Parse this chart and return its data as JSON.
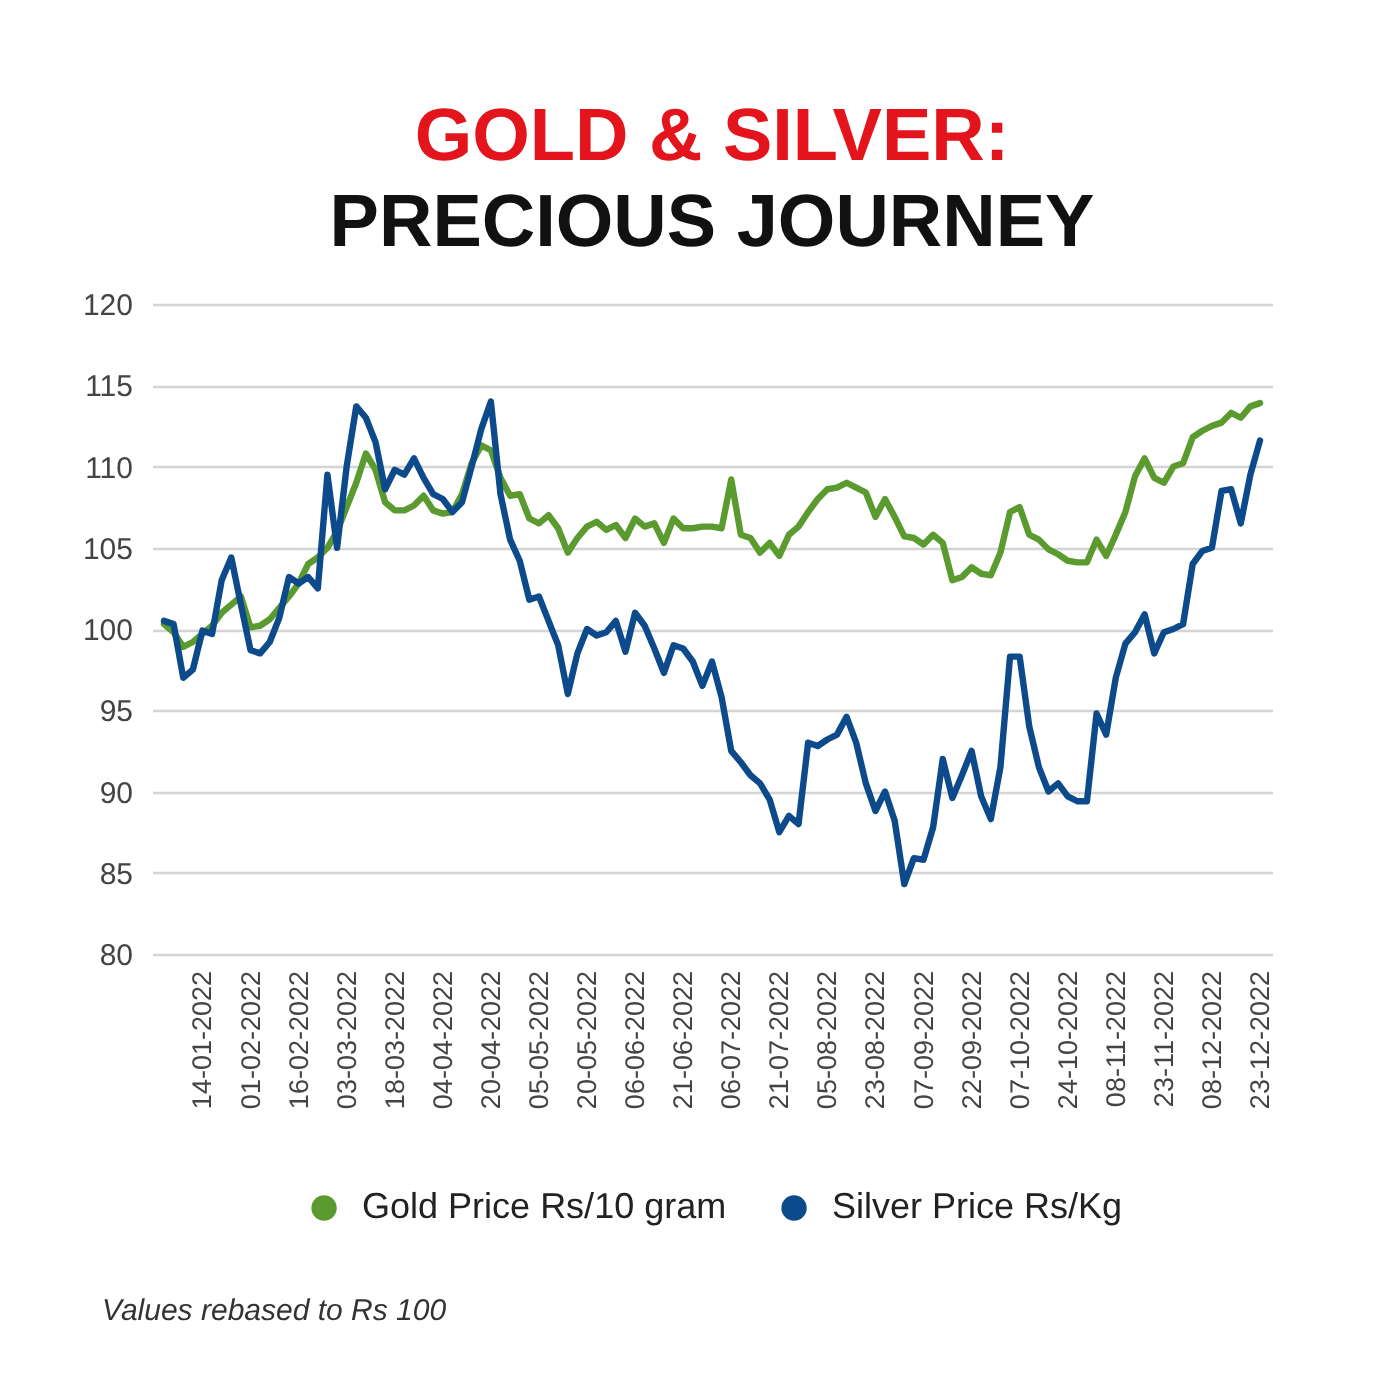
{
  "chart_data": {
    "type": "line",
    "title": "GOLD & SILVER:",
    "subtitle": "PRECIOUS JOURNEY",
    "categories": [
      null,
      null,
      null,
      null,
      "14-01-2022",
      null,
      null,
      null,
      null,
      "01-02-2022",
      null,
      null,
      null,
      null,
      "16-02-2022",
      null,
      null,
      null,
      null,
      "03-03-2022",
      null,
      null,
      null,
      null,
      "18-03-2022",
      null,
      null,
      null,
      null,
      "04-04-2022",
      null,
      null,
      null,
      null,
      "20-04-2022",
      null,
      null,
      null,
      null,
      "05-05-2022",
      null,
      null,
      null,
      null,
      "20-05-2022",
      null,
      null,
      null,
      null,
      "06-06-2022",
      null,
      null,
      null,
      null,
      "21-06-2022",
      null,
      null,
      null,
      null,
      "06-07-2022",
      null,
      null,
      null,
      null,
      "21-07-2022",
      null,
      null,
      null,
      null,
      "05-08-2022",
      null,
      null,
      null,
      null,
      "23-08-2022",
      null,
      null,
      null,
      null,
      "07-09-2022",
      null,
      null,
      null,
      null,
      "22-09-2022",
      null,
      null,
      null,
      null,
      "07-10-2022",
      null,
      null,
      null,
      null,
      "24-10-2022",
      null,
      null,
      null,
      null,
      "08-11-2022",
      null,
      null,
      null,
      null,
      "23-11-2022",
      null,
      null,
      null,
      null,
      "08-12-2022",
      null,
      null,
      null,
      null,
      "23-12-2022"
    ],
    "series": [
      {
        "name": "Gold Price Rs/10 gram",
        "color": "#5b9a2f",
        "values": [
          100.3,
          99.8,
          98.9,
          99.2,
          99.7,
          100.2,
          101,
          101.5,
          102,
          100.1,
          100.2,
          100.6,
          101.3,
          102,
          102.8,
          104,
          104.4,
          105,
          106,
          107.5,
          109,
          110.8,
          109.8,
          107.8,
          107.3,
          107.3,
          107.6,
          108.2,
          107.3,
          107.1,
          107.2,
          108.3,
          110.2,
          111.3,
          111,
          109.3,
          108.2,
          108.3,
          106.8,
          106.5,
          107,
          106.2,
          104.7,
          105.6,
          106.3,
          106.6,
          106.1,
          106.4,
          105.6,
          106.8,
          106.3,
          106.5,
          105.3,
          106.8,
          106.2,
          106.2,
          106.3,
          106.3,
          106.2,
          109.2,
          105.8,
          105.6,
          104.7,
          105.3,
          104.5,
          105.8,
          106.3,
          107.2,
          108,
          108.6,
          108.7,
          109,
          108.7,
          108.4,
          106.9,
          108,
          106.9,
          105.7,
          105.6,
          105.2,
          105.8,
          105.3,
          103,
          103.2,
          103.8,
          103.4,
          103.3,
          104.7,
          107.2,
          107.5,
          105.8,
          105.5,
          104.9,
          104.6,
          104.2,
          104.1,
          104.1,
          105.5,
          104.5,
          105.8,
          107.2,
          109.4,
          110.5,
          109.3,
          109,
          110,
          110.2,
          111.8,
          112.2,
          112.5,
          112.7,
          113.3,
          113,
          113.7,
          113.9
        ]
      },
      {
        "name": "Silver Price Rs/Kg",
        "color": "#0d4a8b",
        "values": [
          100.5,
          100.3,
          97,
          97.5,
          99.9,
          99.7,
          103,
          104.4,
          101.5,
          98.7,
          98.5,
          99.2,
          100.7,
          103.2,
          102.8,
          103.2,
          102.5,
          109.5,
          105,
          110,
          113.7,
          113,
          111.5,
          108.6,
          109.8,
          109.5,
          110.5,
          109.3,
          108.3,
          108,
          107.2,
          107.8,
          110,
          112.3,
          114,
          108.3,
          105.5,
          104.2,
          101.8,
          102,
          100.5,
          99,
          96,
          98.5,
          100,
          99.6,
          99.8,
          100.5,
          98.6,
          101,
          100.2,
          98.8,
          97.3,
          99,
          98.8,
          98,
          96.5,
          98,
          95.8,
          92.5,
          91.8,
          91,
          90.5,
          89.5,
          87.5,
          88.5,
          88,
          93,
          92.8,
          93.2,
          93.5,
          94.6,
          93,
          90.5,
          88.8,
          90,
          88.2,
          84.3,
          85.9,
          85.8,
          87.8,
          92,
          89.6,
          91,
          92.5,
          89.7,
          88.3,
          91.5,
          98.3,
          98.3,
          94,
          91.5,
          90,
          90.5,
          89.7,
          89.4,
          89.4,
          94.8,
          93.5,
          97,
          99.1,
          99.8,
          100.9,
          98.5,
          99.8,
          100,
          100.3,
          104,
          104.8,
          105,
          108.5,
          108.6,
          106.5,
          109.5,
          111.6
        ]
      }
    ],
    "ylim": [
      80,
      120
    ],
    "yticks": [
      80,
      85,
      90,
      95,
      100,
      105,
      110,
      115,
      120
    ],
    "grid": "y",
    "legend": "bottom",
    "annotations": [
      "Values rebased to Rs 100"
    ]
  }
}
